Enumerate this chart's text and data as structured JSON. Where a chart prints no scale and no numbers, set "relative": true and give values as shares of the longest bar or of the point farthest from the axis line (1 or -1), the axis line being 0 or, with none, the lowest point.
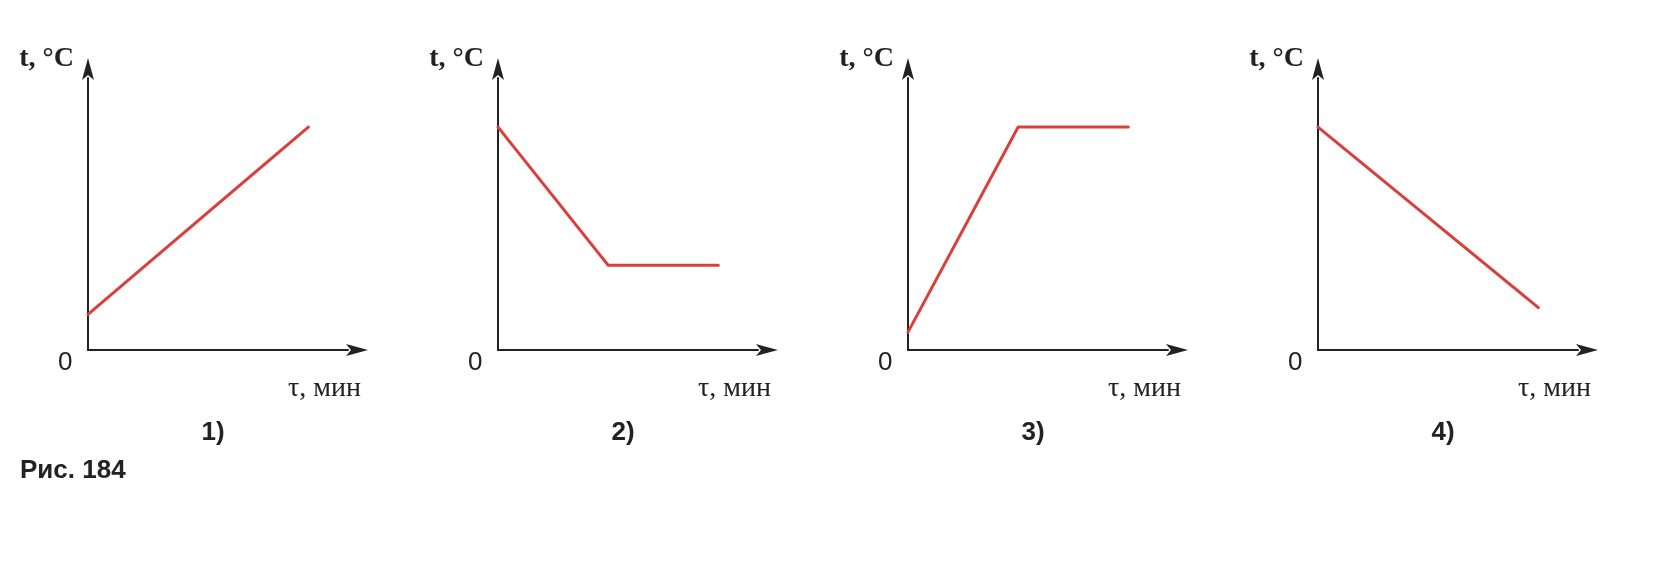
{
  "chart_data": [
    {
      "type": "line",
      "title": "1)",
      "xlabel": "τ, мин",
      "ylabel": "t, °C",
      "categories": [
        null,
        null
      ],
      "values": [
        0.16,
        1
      ],
      "color": "#d9403c",
      "relative": true,
      "marker": "none",
      "line_style": "solid",
      "annotations": [
        "0",
        "Рис. 184"
      ]
    },
    {
      "type": "line",
      "title": "2)",
      "xlabel": "τ, мин",
      "ylabel": "t, °C",
      "categories": [
        null,
        null,
        null
      ],
      "values": [
        1,
        0.38,
        0.38
      ],
      "color": "#d9403c",
      "relative": true,
      "marker": "none",
      "line_style": "solid",
      "annotations": [
        "0"
      ]
    },
    {
      "type": "line",
      "title": "3)",
      "xlabel": "τ, мин",
      "ylabel": "t, °C",
      "categories": [
        null,
        null,
        null
      ],
      "values": [
        0.08,
        1,
        1
      ],
      "color": "#d9403c",
      "relative": true,
      "marker": "none",
      "line_style": "solid",
      "annotations": [
        "0"
      ]
    },
    {
      "type": "line",
      "title": "4)",
      "xlabel": "τ, мин",
      "ylabel": "t, °C",
      "categories": [
        null,
        null
      ],
      "values": [
        1,
        0.19
      ],
      "color": "#d9403c",
      "relative": true,
      "marker": "none",
      "line_style": "solid",
      "annotations": [
        "0"
      ]
    }
  ]
}
